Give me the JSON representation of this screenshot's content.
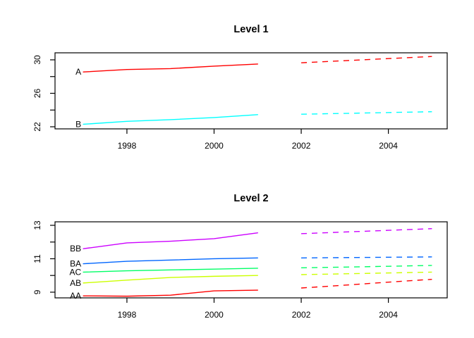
{
  "chart_data": [
    {
      "type": "line",
      "title": "Level 1",
      "x_history": [
        1997,
        1998,
        1999,
        2000,
        2001
      ],
      "x_forecast": [
        2002,
        2003,
        2004,
        2005
      ],
      "x_tick_labels": [
        "1998",
        "2000",
        "2002",
        "2004"
      ],
      "x_tick_values": [
        1998,
        2000,
        2002,
        2004
      ],
      "y_tick_values": [
        22,
        24,
        26,
        28,
        30
      ],
      "y_tick_labels": [
        "22",
        "",
        "26",
        "",
        "30"
      ],
      "xlim": [
        1996.35,
        2005.35
      ],
      "ylim": [
        21.75,
        30.84
      ],
      "grid": false,
      "legend_position": "inline-left-of-first-point",
      "history_linestyle": "solid",
      "forecast_linestyle": "dashed",
      "series": [
        {
          "name": "A",
          "color": "#FF0000",
          "history": [
            28.55,
            28.85,
            28.95,
            29.25,
            29.5
          ],
          "forecast": [
            29.65,
            29.9,
            30.15,
            30.4
          ]
        },
        {
          "name": "B",
          "color": "#00FFFF",
          "history": [
            22.3,
            22.65,
            22.85,
            23.1,
            23.45
          ],
          "forecast": [
            23.5,
            23.6,
            23.7,
            23.8
          ]
        }
      ]
    },
    {
      "type": "line",
      "title": "Level 2",
      "x_history": [
        1997,
        1998,
        1999,
        2000,
        2001
      ],
      "x_forecast": [
        2002,
        2003,
        2004,
        2005
      ],
      "x_tick_labels": [
        "1998",
        "2000",
        "2002",
        "2004"
      ],
      "x_tick_values": [
        1998,
        2000,
        2002,
        2004
      ],
      "y_tick_values": [
        9,
        10,
        11,
        12,
        13
      ],
      "y_tick_labels": [
        "9",
        "",
        "11",
        "",
        "13"
      ],
      "xlim": [
        1996.35,
        2005.35
      ],
      "ylim": [
        8.66,
        13.21
      ],
      "grid": false,
      "legend_position": "inline-left-of-first-point",
      "history_linestyle": "solid",
      "forecast_linestyle": "dashed",
      "series": [
        {
          "name": "BB",
          "color": "#CC00FF",
          "history": [
            11.6,
            11.95,
            12.05,
            12.2,
            12.55
          ],
          "forecast": [
            12.5,
            12.6,
            12.7,
            12.8
          ]
        },
        {
          "name": "BA",
          "color": "#0066FF",
          "history": [
            10.7,
            10.85,
            10.92,
            11.0,
            11.05
          ],
          "forecast": [
            11.05,
            11.07,
            11.09,
            11.11
          ]
        },
        {
          "name": "AC",
          "color": "#00FF66",
          "history": [
            10.2,
            10.28,
            10.33,
            10.38,
            10.43
          ],
          "forecast": [
            10.46,
            10.5,
            10.55,
            10.6
          ]
        },
        {
          "name": "AB",
          "color": "#CCFF00",
          "history": [
            9.55,
            9.72,
            9.88,
            9.95,
            10.0
          ],
          "forecast": [
            10.05,
            10.1,
            10.15,
            10.2
          ]
        },
        {
          "name": "AA",
          "color": "#FF0000",
          "history": [
            8.78,
            8.76,
            8.82,
            9.08,
            9.12
          ],
          "forecast": [
            9.25,
            9.42,
            9.6,
            9.77
          ]
        }
      ]
    }
  ]
}
